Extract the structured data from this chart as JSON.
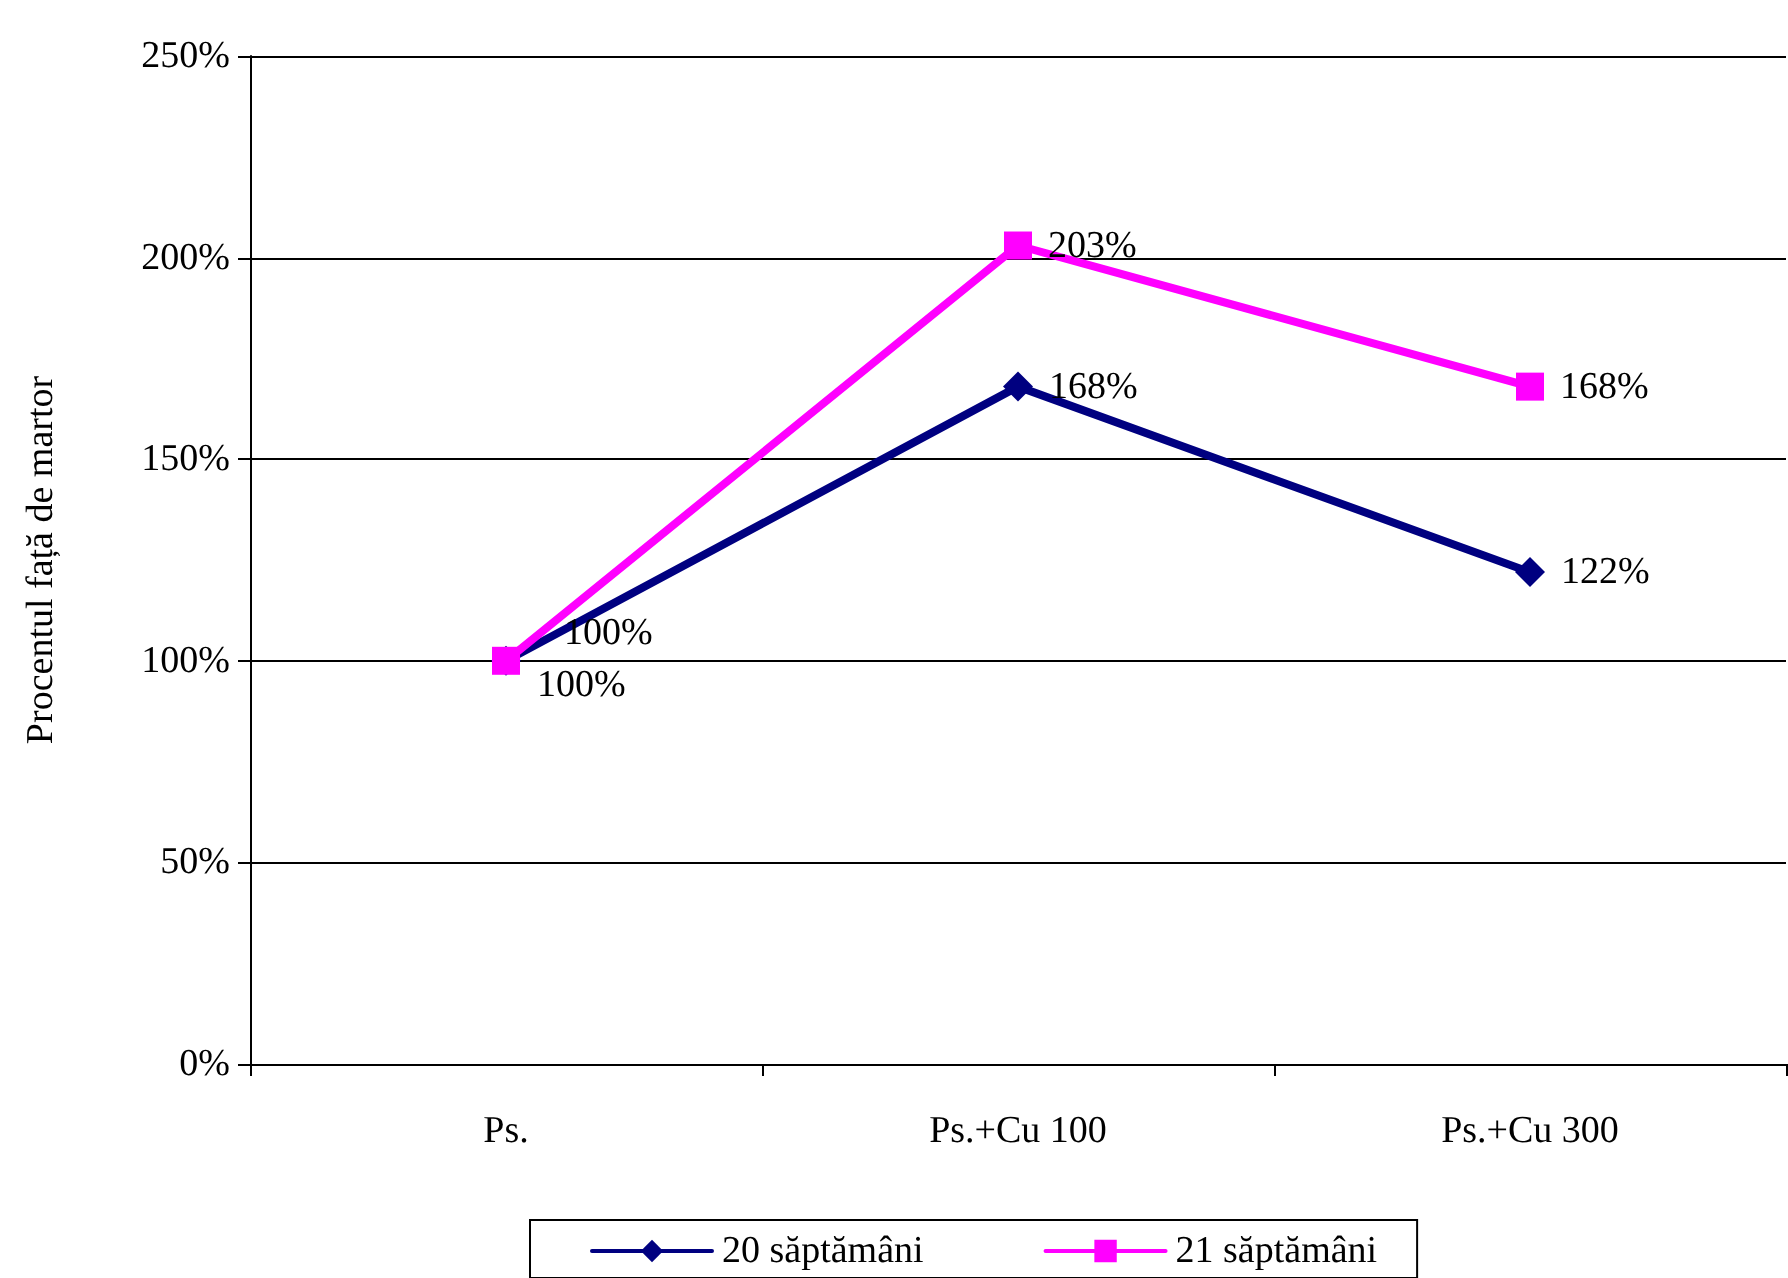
{
  "chart_data": {
    "type": "line",
    "ylabel": "Procentul față de martor",
    "categories": [
      "Ps.",
      "Ps.+Cu 100",
      "Ps.+Cu 300"
    ],
    "series": [
      {
        "name": "20 săptămâni",
        "color": "#000080",
        "marker": "diamond",
        "values": [
          100,
          168,
          122
        ],
        "value_labels": [
          "100%",
          "168%",
          "122%"
        ]
      },
      {
        "name": "21 săptămâni",
        "color": "#ff00ff",
        "marker": "square",
        "values": [
          100,
          203,
          168
        ],
        "value_labels": [
          "100%",
          "203%",
          "168%"
        ]
      }
    ],
    "ylim": [
      0,
      250
    ],
    "yticks": [
      {
        "value": 0,
        "label": "0%"
      },
      {
        "value": 50,
        "label": "50%"
      },
      {
        "value": 100,
        "label": "100%"
      },
      {
        "value": 150,
        "label": "150%"
      },
      {
        "value": 200,
        "label": "200%"
      },
      {
        "value": 250,
        "label": "250%"
      }
    ],
    "grid": "y",
    "legend": "bottom",
    "line_style": "solid"
  }
}
